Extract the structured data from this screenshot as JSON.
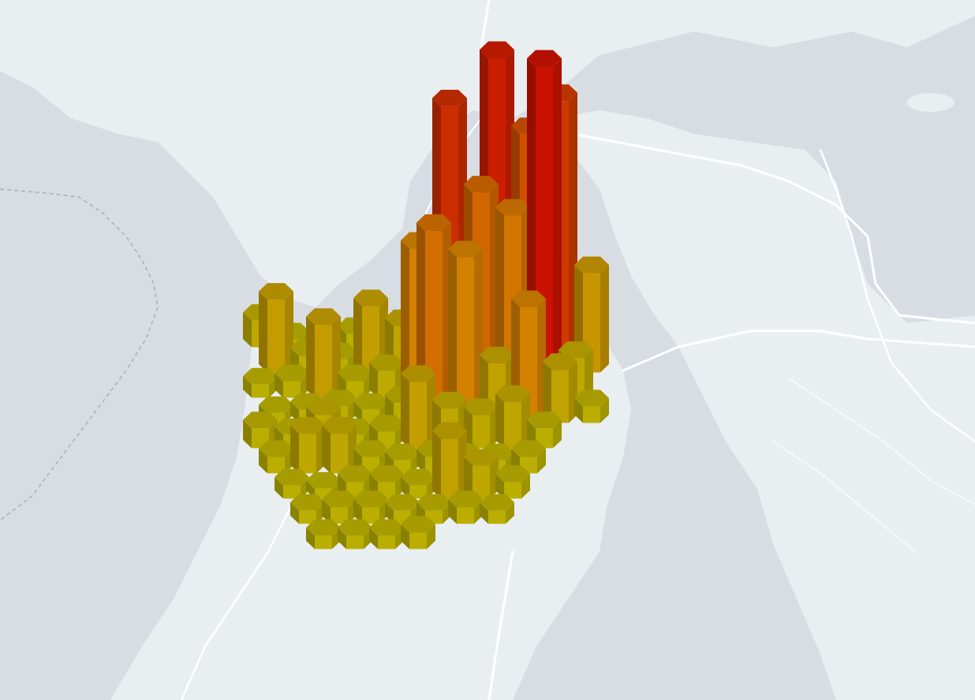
{
  "map": {
    "water_color": "#d7dde3",
    "land_color": "#e9eef1",
    "road_color": "#ffffff",
    "boundary_color": "#a8b1b8"
  },
  "legend_colors": {
    "low": "#c8c200",
    "mid": "#e58c00",
    "high": "#dc1400"
  },
  "hexbin_layer": {
    "type": "3d-hexagon-columns",
    "cells": [
      {
        "col": 0,
        "row": 0,
        "v": 0.08
      },
      {
        "col": 1,
        "row": 0,
        "v": 0.02
      },
      {
        "col": 2,
        "row": 0,
        "v": 0.03
      },
      {
        "col": 3,
        "row": 0,
        "v": 0.04
      },
      {
        "col": 4,
        "row": 0,
        "v": 0.03
      },
      {
        "col": 5,
        "row": 0,
        "v": 0.05
      },
      {
        "col": 6,
        "row": 0,
        "v": 0.04
      },
      {
        "col": 7,
        "row": 0,
        "v": 0.04
      },
      {
        "col": 8,
        "row": 0,
        "v": 0.05
      },
      {
        "col": 0,
        "row": 1,
        "v": 0.22
      },
      {
        "col": 1,
        "row": 1,
        "v": 0.05
      },
      {
        "col": 2,
        "row": 1,
        "v": 0.04
      },
      {
        "col": 3,
        "row": 1,
        "v": 0.2
      },
      {
        "col": 4,
        "row": 1,
        "v": 0.14
      },
      {
        "col": 5,
        "row": 1,
        "v": 0.26
      },
      {
        "col": 6,
        "row": 1,
        "v": 0.05
      },
      {
        "col": 7,
        "row": 1,
        "v": 0.95
      },
      {
        "col": 8,
        "row": 1,
        "v": 0.72
      },
      {
        "col": 9,
        "row": 1,
        "v": 0.82
      },
      {
        "col": 10,
        "row": 1,
        "v": 0.3
      },
      {
        "col": 0,
        "row": 2,
        "v": 0.04
      },
      {
        "col": 1,
        "row": 2,
        "v": 0.05
      },
      {
        "col": 2,
        "row": 2,
        "v": 0.22
      },
      {
        "col": 3,
        "row": 2,
        "v": 0.05
      },
      {
        "col": 4,
        "row": 2,
        "v": 0.08
      },
      {
        "col": 5,
        "row": 2,
        "v": 0.45
      },
      {
        "col": 6,
        "row": 2,
        "v": 0.88
      },
      {
        "col": 7,
        "row": 2,
        "v": 0.62
      },
      {
        "col": 8,
        "row": 2,
        "v": 0.55
      },
      {
        "col": 9,
        "row": 2,
        "v": 1.0
      },
      {
        "col": 10,
        "row": 2,
        "v": 0.12
      },
      {
        "col": 0,
        "row": 3,
        "v": 0.03
      },
      {
        "col": 1,
        "row": 3,
        "v": 0.04
      },
      {
        "col": 2,
        "row": 3,
        "v": 0.05
      },
      {
        "col": 3,
        "row": 3,
        "v": 0.04
      },
      {
        "col": 4,
        "row": 3,
        "v": 0.06
      },
      {
        "col": 5,
        "row": 3,
        "v": 0.58
      },
      {
        "col": 6,
        "row": 3,
        "v": 0.5
      },
      {
        "col": 7,
        "row": 3,
        "v": 0.18
      },
      {
        "col": 8,
        "row": 3,
        "v": 0.35
      },
      {
        "col": 9,
        "row": 3,
        "v": 0.16
      },
      {
        "col": 10,
        "row": 3,
        "v": 0.05
      },
      {
        "col": 0,
        "row": 4,
        "v": 0.06
      },
      {
        "col": 1,
        "row": 4,
        "v": 0.04
      },
      {
        "col": 2,
        "row": 4,
        "v": 0.1
      },
      {
        "col": 3,
        "row": 4,
        "v": 0.04
      },
      {
        "col": 4,
        "row": 4,
        "v": 0.05
      },
      {
        "col": 5,
        "row": 4,
        "v": 0.2
      },
      {
        "col": 6,
        "row": 4,
        "v": 0.12
      },
      {
        "col": 7,
        "row": 4,
        "v": 0.1
      },
      {
        "col": 8,
        "row": 4,
        "v": 0.14
      },
      {
        "col": 9,
        "row": 4,
        "v": 0.06
      },
      {
        "col": 0,
        "row": 5,
        "v": 0.05
      },
      {
        "col": 1,
        "row": 5,
        "v": 0.12
      },
      {
        "col": 2,
        "row": 5,
        "v": 0.12
      },
      {
        "col": 3,
        "row": 5,
        "v": 0.05
      },
      {
        "col": 4,
        "row": 5,
        "v": 0.04
      },
      {
        "col": 5,
        "row": 5,
        "v": 0.05
      },
      {
        "col": 6,
        "row": 5,
        "v": 0.04
      },
      {
        "col": 7,
        "row": 5,
        "v": 0.04
      },
      {
        "col": 8,
        "row": 5,
        "v": 0.05
      },
      {
        "col": 1,
        "row": 6,
        "v": 0.04
      },
      {
        "col": 2,
        "row": 6,
        "v": 0.03
      },
      {
        "col": 3,
        "row": 6,
        "v": 0.05
      },
      {
        "col": 4,
        "row": 6,
        "v": 0.05
      },
      {
        "col": 5,
        "row": 6,
        "v": 0.04
      },
      {
        "col": 6,
        "row": 6,
        "v": 0.18
      },
      {
        "col": 7,
        "row": 6,
        "v": 0.1
      },
      {
        "col": 8,
        "row": 6,
        "v": 0.05
      },
      {
        "col": 1,
        "row": 7,
        "v": 0.04
      },
      {
        "col": 2,
        "row": 7,
        "v": 0.05
      },
      {
        "col": 3,
        "row": 7,
        "v": 0.05
      },
      {
        "col": 4,
        "row": 7,
        "v": 0.04
      },
      {
        "col": 5,
        "row": 7,
        "v": 0.04
      },
      {
        "col": 6,
        "row": 7,
        "v": 0.05
      },
      {
        "col": 7,
        "row": 7,
        "v": 0.04
      },
      {
        "col": 2,
        "row": 8,
        "v": 0.04
      },
      {
        "col": 3,
        "row": 8,
        "v": 0.04
      },
      {
        "col": 4,
        "row": 8,
        "v": 0.04
      },
      {
        "col": 5,
        "row": 8,
        "v": 0.05
      }
    ]
  }
}
